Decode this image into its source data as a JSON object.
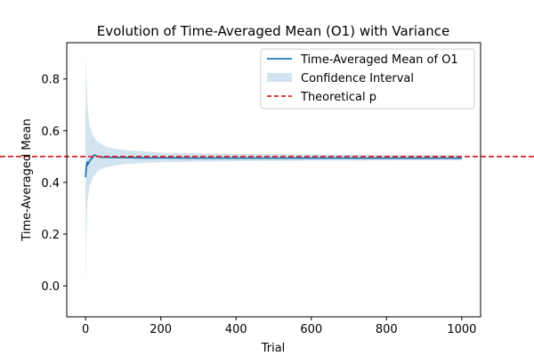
{
  "chart_data": {
    "type": "line",
    "title": "Evolution of Time-Averaged Mean (O1) with Variance",
    "xlabel": "Trial",
    "ylabel": "Time-Averaged Mean",
    "xlim": [
      -50,
      1050
    ],
    "ylim": [
      -0.12,
      0.94
    ],
    "xticks": [
      0,
      200,
      400,
      600,
      800,
      1000
    ],
    "yticks": [
      0.0,
      0.2,
      0.4,
      0.6,
      0.8
    ],
    "grid": false,
    "legend_position": "top-right",
    "series": [
      {
        "name": "Time-Averaged Mean of O1",
        "kind": "line",
        "color": "#1f77b4",
        "x": [
          0,
          2,
          4,
          6,
          8,
          10,
          12,
          15,
          18,
          22,
          26,
          30,
          35,
          40,
          50,
          60,
          80,
          100,
          150,
          200,
          300,
          400,
          500,
          600,
          700,
          800,
          900,
          1000
        ],
        "y": [
          0.42,
          0.46,
          0.48,
          0.47,
          0.475,
          0.48,
          0.485,
          0.49,
          0.495,
          0.505,
          0.505,
          0.5,
          0.5,
          0.498,
          0.497,
          0.497,
          0.496,
          0.496,
          0.495,
          0.495,
          0.494,
          0.494,
          0.494,
          0.494,
          0.494,
          0.494,
          0.494,
          0.494
        ]
      },
      {
        "name": "Confidence Interval",
        "kind": "band",
        "color": "#1f77b4",
        "opacity": 0.2,
        "x": [
          0,
          2,
          5,
          10,
          15,
          20,
          30,
          40,
          60,
          80,
          100,
          150,
          200,
          300,
          400,
          500,
          600,
          700,
          800,
          900,
          1000
        ],
        "upper": [
          0.9,
          0.8,
          0.7,
          0.62,
          0.6,
          0.58,
          0.56,
          0.55,
          0.535,
          0.53,
          0.525,
          0.52,
          0.515,
          0.512,
          0.51,
          0.51,
          0.508,
          0.507,
          0.506,
          0.506,
          0.505
        ],
        "lower": [
          -0.02,
          0.2,
          0.32,
          0.38,
          0.4,
          0.42,
          0.44,
          0.45,
          0.46,
          0.465,
          0.47,
          0.475,
          0.478,
          0.48,
          0.482,
          0.483,
          0.484,
          0.484,
          0.485,
          0.485,
          0.485
        ]
      },
      {
        "name": "Theoretical p",
        "kind": "hline",
        "color": "#d62728",
        "value": 0.5,
        "dashed": true
      }
    ]
  }
}
